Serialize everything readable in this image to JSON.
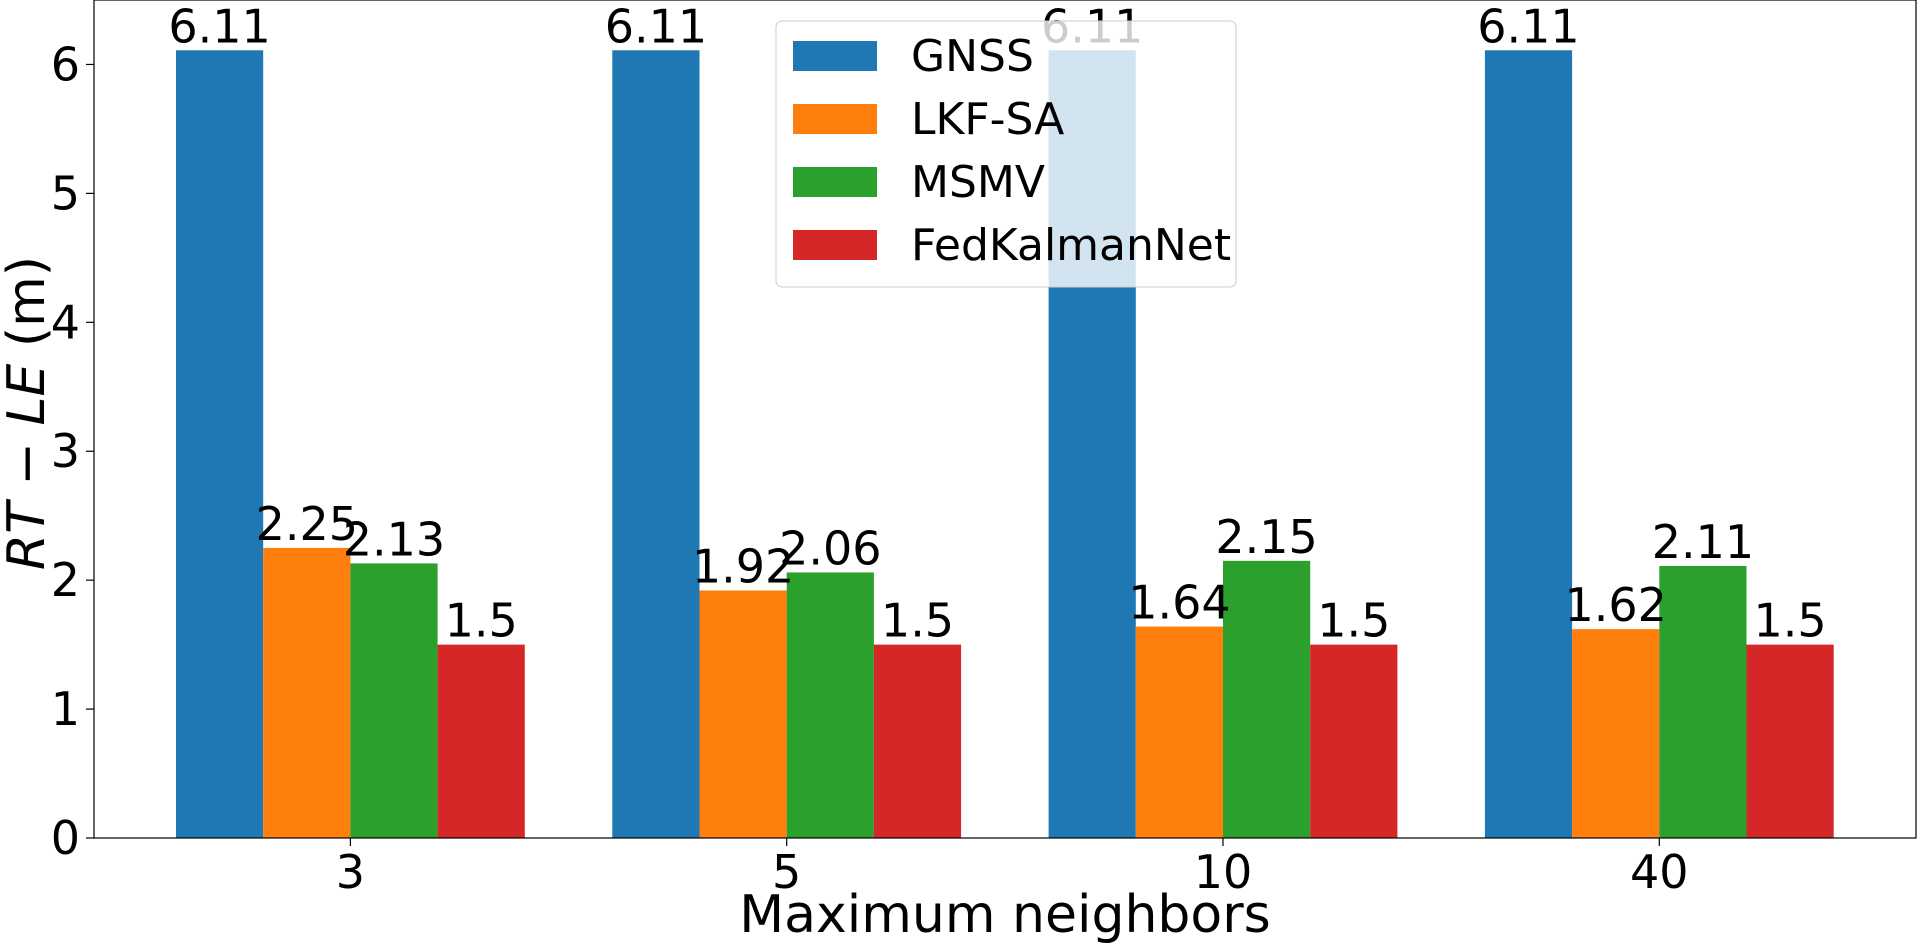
{
  "chart_data": {
    "type": "bar",
    "xlabel": "Maximum neighbors",
    "ylabel": {
      "prefix": "RT",
      "sep": " − ",
      "mid": "LE",
      "unit": " (m)"
    },
    "categories": [
      "3",
      "5",
      "10",
      "40"
    ],
    "ylim": [
      0,
      6.5
    ],
    "yticks": [
      "0",
      "1",
      "2",
      "3",
      "4",
      "5",
      "6"
    ],
    "legend_position": "top-center",
    "grid": false,
    "series": [
      {
        "name": "GNSS",
        "color": "#1f77b4",
        "values": [
          6.11,
          6.11,
          6.11,
          6.11
        ],
        "labels": [
          "6.11",
          "6.11",
          "6.11",
          "6.11"
        ]
      },
      {
        "name": "LKF-SA",
        "color": "#ff7f0e",
        "values": [
          2.25,
          1.92,
          1.64,
          1.62
        ],
        "labels": [
          "2.25",
          "1.92",
          "1.64",
          "1.62"
        ]
      },
      {
        "name": "MSMV",
        "color": "#2ca02c",
        "values": [
          2.13,
          2.06,
          2.15,
          2.11
        ],
        "labels": [
          "2.13",
          "2.06",
          "2.15",
          "2.11"
        ]
      },
      {
        "name": "FedKalmanNet",
        "color": "#d62728",
        "values": [
          1.5,
          1.5,
          1.5,
          1.5
        ],
        "labels": [
          "1.5",
          "1.5",
          "1.5",
          "1.5"
        ]
      }
    ]
  }
}
